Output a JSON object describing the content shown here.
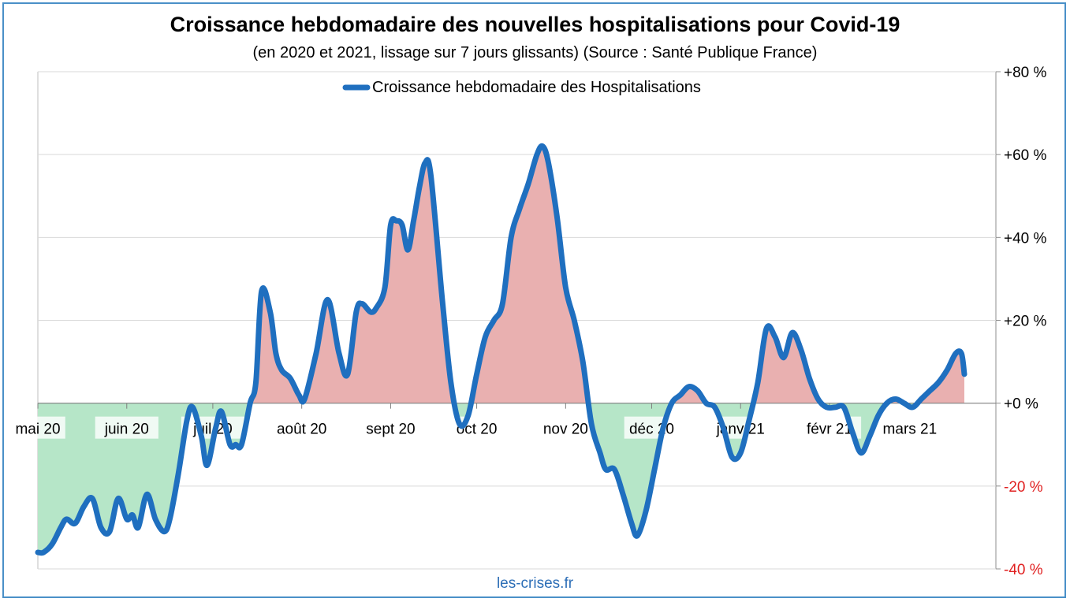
{
  "title": "Croissance hebdomadaire des nouvelles hospitalisations pour Covid-19",
  "subtitle": "(en 2020 et 2021, lissage sur 7 jours glissants) (Source : Santé Publique France)",
  "footer": "les-crises.fr",
  "colors": {
    "line": "#1f6fbf",
    "positive_fill": "#e9b0b0",
    "negative_fill": "#b6e6c8",
    "negative_tick": "#e02020",
    "frame": "#4a90c8"
  },
  "chart_data": {
    "type": "area",
    "title": "Croissance hebdomadaire des nouvelles hospitalisations pour Covid-19",
    "subtitle": "(en 2020 et 2021, lissage sur 7 jours glissants) (Source : Santé Publique France)",
    "ylim": [
      -40,
      80
    ],
    "y_axis_position": "right",
    "yticks": [
      {
        "value": 80,
        "label": "+80 %"
      },
      {
        "value": 60,
        "label": "+60 %"
      },
      {
        "value": 40,
        "label": "+40 %"
      },
      {
        "value": 20,
        "label": "+20 %"
      },
      {
        "value": 0,
        "label": "+0 %"
      },
      {
        "value": -20,
        "label": "-20 %"
      },
      {
        "value": -40,
        "label": "-40 %"
      }
    ],
    "xlim": [
      "2020-05-01",
      "2021-03-31"
    ],
    "xticks": [
      {
        "date": "2020-05-01",
        "label": "mai 20"
      },
      {
        "date": "2020-06-01",
        "label": "juin 20"
      },
      {
        "date": "2020-07-01",
        "label": "juil 20"
      },
      {
        "date": "2020-08-01",
        "label": "août 20"
      },
      {
        "date": "2020-09-01",
        "label": "sept 20"
      },
      {
        "date": "2020-10-01",
        "label": "oct 20"
      },
      {
        "date": "2020-11-01",
        "label": "nov 20"
      },
      {
        "date": "2020-12-01",
        "label": "déc 20"
      },
      {
        "date": "2021-01-01",
        "label": "janv 21"
      },
      {
        "date": "2021-02-01",
        "label": "févr 21"
      },
      {
        "date": "2021-03-01",
        "label": "mars 21"
      }
    ],
    "grid": true,
    "legend": "top-center",
    "series": [
      {
        "name": "Croissance hebdomadaire des Hospitalisations",
        "points": [
          [
            "2020-05-01",
            -36
          ],
          [
            "2020-05-03",
            -36
          ],
          [
            "2020-05-06",
            -34
          ],
          [
            "2020-05-09",
            -30
          ],
          [
            "2020-05-11",
            -28
          ],
          [
            "2020-05-14",
            -29
          ],
          [
            "2020-05-17",
            -25
          ],
          [
            "2020-05-20",
            -23
          ],
          [
            "2020-05-23",
            -30
          ],
          [
            "2020-05-26",
            -31
          ],
          [
            "2020-05-29",
            -23
          ],
          [
            "2020-06-01",
            -28
          ],
          [
            "2020-06-03",
            -27
          ],
          [
            "2020-06-05",
            -30
          ],
          [
            "2020-06-08",
            -22
          ],
          [
            "2020-06-11",
            -28
          ],
          [
            "2020-06-14",
            -31
          ],
          [
            "2020-06-16",
            -28
          ],
          [
            "2020-06-19",
            -17
          ],
          [
            "2020-06-22",
            -4
          ],
          [
            "2020-06-24",
            -1
          ],
          [
            "2020-06-27",
            -8
          ],
          [
            "2020-06-29",
            -15
          ],
          [
            "2020-07-02",
            -6
          ],
          [
            "2020-07-04",
            -2
          ],
          [
            "2020-07-07",
            -10
          ],
          [
            "2020-07-09",
            -10
          ],
          [
            "2020-07-11",
            -10
          ],
          [
            "2020-07-14",
            0
          ],
          [
            "2020-07-16",
            5
          ],
          [
            "2020-07-18",
            27
          ],
          [
            "2020-07-21",
            22
          ],
          [
            "2020-07-23",
            12
          ],
          [
            "2020-07-25",
            8
          ],
          [
            "2020-07-28",
            6
          ],
          [
            "2020-07-31",
            2
          ],
          [
            "2020-08-02",
            1
          ],
          [
            "2020-08-06",
            12
          ],
          [
            "2020-08-10",
            25
          ],
          [
            "2020-08-14",
            12
          ],
          [
            "2020-08-17",
            7
          ],
          [
            "2020-08-20",
            22
          ],
          [
            "2020-08-22",
            24
          ],
          [
            "2020-08-25",
            22
          ],
          [
            "2020-08-27",
            23
          ],
          [
            "2020-08-30",
            28
          ],
          [
            "2020-09-01",
            43
          ],
          [
            "2020-09-03",
            44
          ],
          [
            "2020-09-05",
            43
          ],
          [
            "2020-09-07",
            37
          ],
          [
            "2020-09-09",
            44
          ],
          [
            "2020-09-11",
            52
          ],
          [
            "2020-09-13",
            58
          ],
          [
            "2020-09-15",
            55
          ],
          [
            "2020-09-19",
            25
          ],
          [
            "2020-09-22",
            5
          ],
          [
            "2020-09-25",
            -5
          ],
          [
            "2020-09-28",
            -3
          ],
          [
            "2020-10-01",
            7
          ],
          [
            "2020-10-04",
            16
          ],
          [
            "2020-10-07",
            20
          ],
          [
            "2020-10-10",
            24
          ],
          [
            "2020-10-13",
            40
          ],
          [
            "2020-10-16",
            47
          ],
          [
            "2020-10-19",
            53
          ],
          [
            "2020-10-22",
            60
          ],
          [
            "2020-10-24",
            62
          ],
          [
            "2020-10-26",
            58
          ],
          [
            "2020-10-29",
            45
          ],
          [
            "2020-11-01",
            28
          ],
          [
            "2020-11-04",
            20
          ],
          [
            "2020-11-07",
            10
          ],
          [
            "2020-11-10",
            -5
          ],
          [
            "2020-11-13",
            -12
          ],
          [
            "2020-11-15",
            -16
          ],
          [
            "2020-11-18",
            -16
          ],
          [
            "2020-11-21",
            -22
          ],
          [
            "2020-11-24",
            -29
          ],
          [
            "2020-11-26",
            -32
          ],
          [
            "2020-11-29",
            -26
          ],
          [
            "2020-12-02",
            -16
          ],
          [
            "2020-12-05",
            -6
          ],
          [
            "2020-12-08",
            0
          ],
          [
            "2020-12-11",
            2
          ],
          [
            "2020-12-14",
            4
          ],
          [
            "2020-12-17",
            3
          ],
          [
            "2020-12-20",
            0
          ],
          [
            "2020-12-23",
            -1
          ],
          [
            "2020-12-26",
            -6
          ],
          [
            "2020-12-29",
            -13
          ],
          [
            "2021-01-01",
            -12
          ],
          [
            "2021-01-04",
            -4
          ],
          [
            "2021-01-07",
            5
          ],
          [
            "2021-01-10",
            18
          ],
          [
            "2021-01-13",
            16
          ],
          [
            "2021-01-16",
            11
          ],
          [
            "2021-01-19",
            17
          ],
          [
            "2021-01-22",
            13
          ],
          [
            "2021-01-25",
            6
          ],
          [
            "2021-01-28",
            1
          ],
          [
            "2021-01-31",
            -1
          ],
          [
            "2021-02-03",
            -1
          ],
          [
            "2021-02-06",
            -1
          ],
          [
            "2021-02-09",
            -7
          ],
          [
            "2021-02-12",
            -12
          ],
          [
            "2021-02-15",
            -8
          ],
          [
            "2021-02-18",
            -3
          ],
          [
            "2021-02-21",
            0
          ],
          [
            "2021-02-24",
            1
          ],
          [
            "2021-02-27",
            0
          ],
          [
            "2021-03-02",
            -1
          ],
          [
            "2021-03-05",
            1
          ],
          [
            "2021-03-08",
            3
          ],
          [
            "2021-03-11",
            5
          ],
          [
            "2021-03-14",
            8
          ],
          [
            "2021-03-17",
            12
          ],
          [
            "2021-03-19",
            12
          ],
          [
            "2021-03-20",
            7
          ]
        ]
      }
    ]
  }
}
